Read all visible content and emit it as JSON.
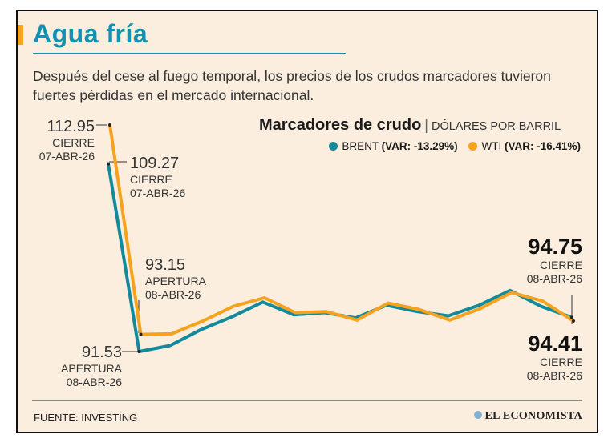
{
  "header": {
    "title": "Agua fría",
    "subtitle": "Después del cese al fuego temporal, los precios de los crudos marcadores tuvieron fuertes pérdidas en el mercado internacional."
  },
  "chart_header": {
    "title": "Marcadores de crudo",
    "separator": "|",
    "unit": "DÓLARES POR BARRIL"
  },
  "legend": [
    {
      "name": "BRENT",
      "var_label": "(VAR: -13.29%)",
      "color": "#13899c"
    },
    {
      "name": "WTI",
      "var_label": "(VAR: -16.41%)",
      "color": "#f5a21f"
    }
  ],
  "annotations": {
    "wti_close_prev": {
      "value": "112.95",
      "label": "CIERRE",
      "date": "07-ABR-26"
    },
    "brent_close_prev": {
      "value": "109.27",
      "label": "CIERRE",
      "date": "07-ABR-26"
    },
    "wti_open": {
      "value": "93.15",
      "label": "APERTURA",
      "date": "08-ABR-26"
    },
    "brent_open": {
      "value": "91.53",
      "label": "APERTURA",
      "date": "08-ABR-26"
    },
    "brent_close": {
      "value": "94.75",
      "label": "CIERRE",
      "date": "08-ABR-26"
    },
    "wti_close": {
      "value": "94.41",
      "label": "CIERRE",
      "date": "08-ABR-26"
    }
  },
  "chart_data": {
    "type": "line",
    "title": "Marcadores de crudo",
    "ylabel": "DÓLARES POR BARRIL",
    "xlabel": "",
    "ylim": [
      90,
      114
    ],
    "grid": false,
    "legend_position": "top-right",
    "x": [
      0,
      1,
      2,
      3,
      4,
      5,
      6,
      7,
      8,
      9,
      10,
      11,
      12,
      13,
      14,
      15
    ],
    "series": [
      {
        "name": "BRENT",
        "color": "#13899c",
        "values": [
          109.27,
          91.53,
          92.1,
          93.6,
          94.8,
          96.2,
          95.0,
          95.2,
          94.7,
          95.9,
          95.3,
          94.9,
          95.9,
          97.3,
          95.8,
          94.75
        ]
      },
      {
        "name": "WTI",
        "color": "#f5a21f",
        "values": [
          112.95,
          93.15,
          93.2,
          94.4,
          95.8,
          96.6,
          95.2,
          95.3,
          94.5,
          96.1,
          95.5,
          94.5,
          95.6,
          97.1,
          96.3,
          94.41
        ]
      }
    ]
  },
  "footer": {
    "source": "FUENTE: INVESTING",
    "brand": "EL ECONOMISTA"
  }
}
